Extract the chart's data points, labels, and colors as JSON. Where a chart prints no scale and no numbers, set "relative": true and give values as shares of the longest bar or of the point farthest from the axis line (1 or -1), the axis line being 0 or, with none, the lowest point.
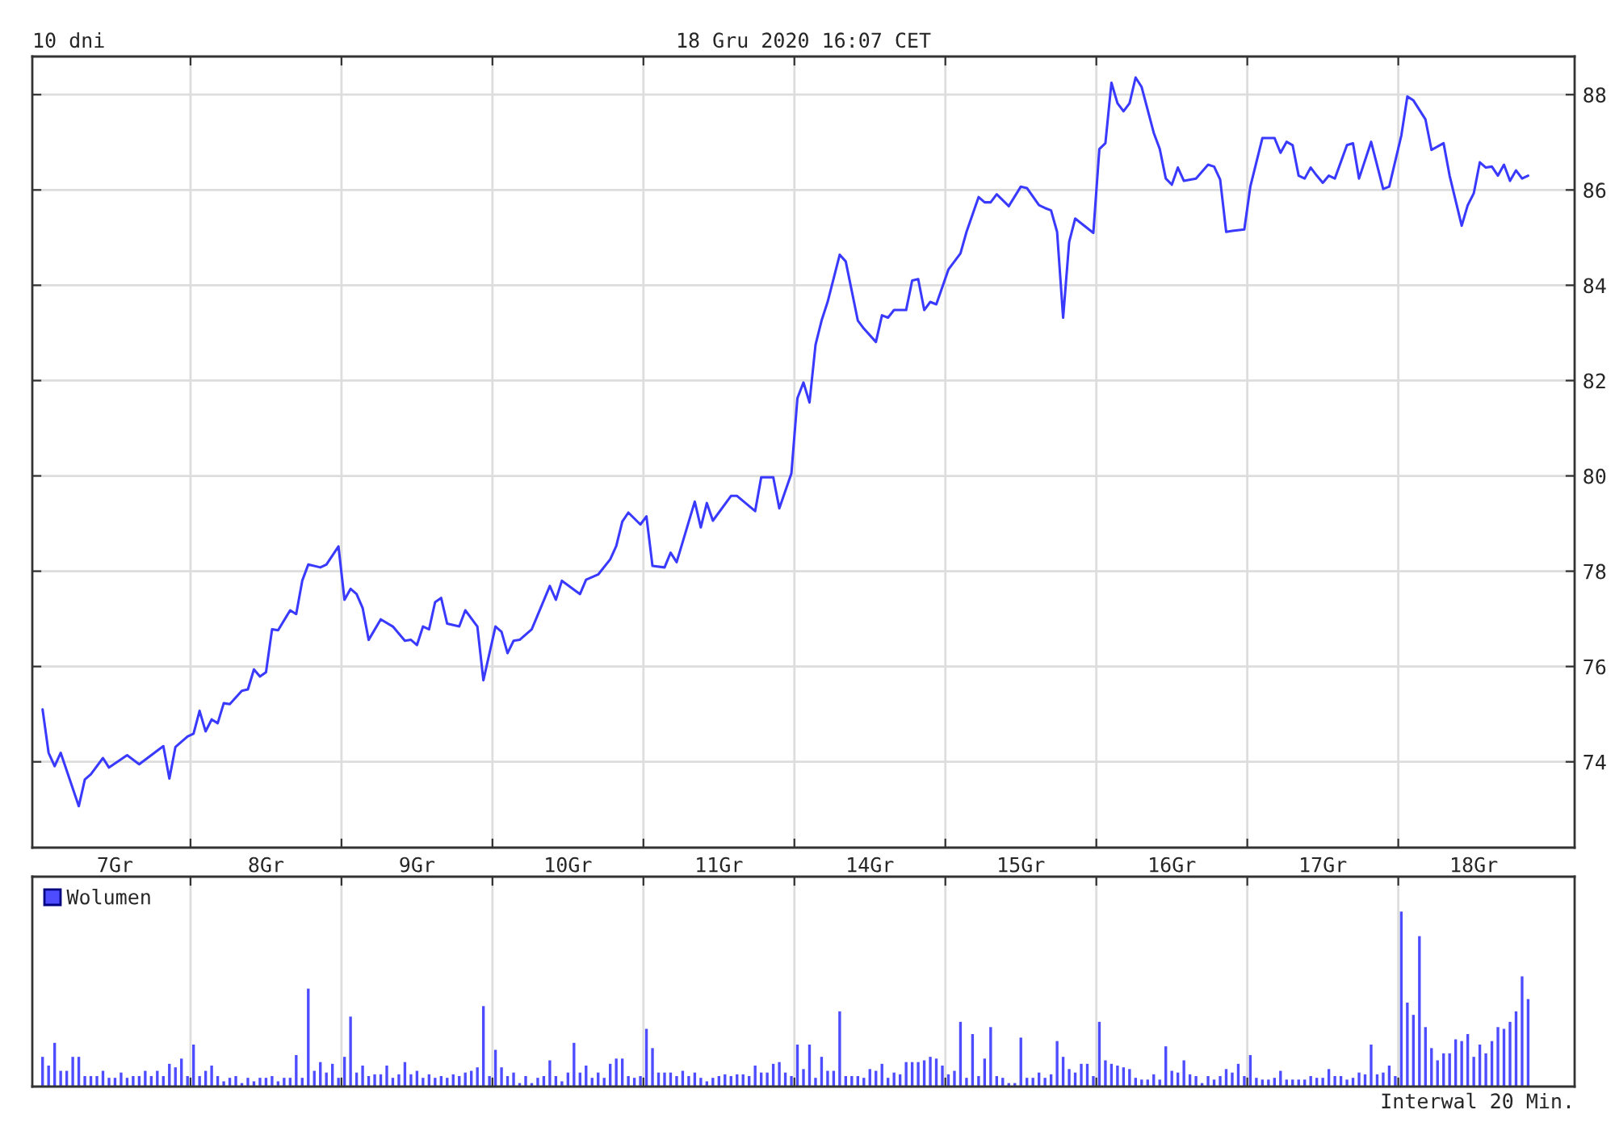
{
  "chart_data": [
    {
      "type": "line",
      "title": "10 dni",
      "subtitle": "18 Gru 2020 16:07 CET",
      "categories": [
        null,
        null,
        null,
        null,
        null,
        null,
        null,
        null,
        null,
        null,
        null,
        null,
        "7Gr",
        null,
        null,
        null,
        null,
        null,
        null,
        null,
        null,
        null,
        null,
        null,
        null,
        null,
        null,
        null,
        null,
        null,
        null,
        null,
        null,
        null,
        null,
        null,
        null,
        "8Gr",
        null,
        null,
        null,
        null,
        null,
        null,
        null,
        null,
        null,
        null,
        null,
        null,
        null,
        null,
        null,
        null,
        null,
        null,
        null,
        null,
        null,
        null,
        null,
        null,
        "9Gr",
        null,
        null,
        null,
        null,
        null,
        null,
        null,
        null,
        null,
        null,
        null,
        null,
        null,
        null,
        null,
        null,
        null,
        null,
        null,
        null,
        null,
        null,
        null,
        null,
        "10Gr",
        null,
        null,
        null,
        null,
        null,
        null,
        null,
        null,
        null,
        null,
        null,
        null,
        null,
        null,
        null,
        null,
        null,
        null,
        null,
        null,
        null,
        null,
        null,
        null,
        "11Gr",
        null,
        null,
        null,
        null,
        null,
        null,
        null,
        null,
        null,
        null,
        null,
        null,
        null,
        null,
        null,
        null,
        null,
        null,
        null,
        null,
        null,
        null,
        null,
        null,
        "14Gr",
        null,
        null,
        null,
        null,
        null,
        null,
        null,
        null,
        null,
        null,
        null,
        null,
        null,
        null,
        null,
        null,
        null,
        null,
        null,
        null,
        null,
        null,
        null,
        null,
        "15Gr",
        null,
        null,
        null,
        null,
        null,
        null,
        null,
        null,
        null,
        null,
        null,
        null,
        null,
        null,
        null,
        null,
        null,
        null,
        null,
        null,
        null,
        null,
        null,
        null,
        "16Gr",
        null,
        null,
        null,
        null,
        null,
        null,
        null,
        null,
        null,
        null,
        null,
        null,
        null,
        null,
        null,
        null,
        null,
        null,
        null,
        null,
        null,
        null,
        null,
        null,
        "17Gr",
        null,
        null,
        null,
        null,
        null,
        null,
        null,
        null,
        null,
        null,
        null,
        null,
        null,
        null,
        null,
        null,
        null,
        null,
        null,
        null,
        null,
        null,
        null,
        null,
        "18Gr",
        null,
        null,
        null,
        null,
        null,
        null,
        null,
        null,
        null
      ],
      "ylim": [
        72.2,
        88.8
      ],
      "yticks": [
        74,
        76,
        78,
        80,
        82,
        84,
        86,
        88
      ],
      "grid": true,
      "series": [
        {
          "color": "#3a3aff",
          "type": "line",
          "values": [
            75.1,
            74.19,
            73.91,
            74.19,
            null,
            null,
            73.07,
            73.63,
            73.74,
            null,
            74.08,
            73.88,
            null,
            null,
            74.14,
            null,
            73.95,
            null,
            null,
            null,
            74.33,
            73.65,
            74.31,
            null,
            74.53,
            74.59,
            75.07,
            74.64,
            74.89,
            74.81,
            75.23,
            75.21,
            null,
            75.49,
            75.52,
            75.94,
            75.79,
            75.88,
            76.78,
            76.76,
            null,
            77.18,
            77.1,
            77.8,
            78.14,
            null,
            78.08,
            78.14,
            null,
            78.52,
            77.4,
            77.63,
            77.52,
            77.23,
            76.56,
            null,
            76.99,
            null,
            76.84,
            null,
            76.54,
            76.56,
            76.45,
            76.84,
            76.78,
            77.35,
            77.44,
            76.9,
            null,
            76.84,
            77.18,
            null,
            76.84,
            75.71,
            null,
            76.84,
            76.73,
            76.28,
            76.54,
            76.56,
            null,
            76.78,
            null,
            null,
            77.69,
            77.4,
            77.8,
            null,
            null,
            77.52,
            77.82,
            null,
            77.93,
            null,
            78.25,
            78.53,
            79.04,
            79.23,
            null,
            78.98,
            79.15,
            78.11,
            null,
            78.08,
            78.39,
            78.19,
            null,
            null,
            79.46,
            78.92,
            79.43,
            79.06,
            null,
            null,
            79.58,
            79.58,
            null,
            null,
            79.26,
            79.97,
            null,
            79.97,
            79.32,
            null,
            80.05,
            81.63,
            81.96,
            81.54,
            82.75,
            83.26,
            83.65,
            null,
            84.64,
            84.5,
            null,
            83.26,
            83.09,
            null,
            82.81,
            83.37,
            83.32,
            83.48,
            null,
            83.48,
            84.1,
            84.13,
            83.48,
            83.65,
            83.6,
            null,
            84.33,
            null,
            84.67,
            85.12,
            null,
            85.85,
            85.74,
            85.74,
            85.91,
            null,
            85.66,
            null,
            86.07,
            86.04,
            null,
            85.68,
            85.62,
            85.57,
            85.12,
            83.32,
            84.91,
            85.4,
            null,
            null,
            85.1,
            86.86,
            86.98,
            88.25,
            87.82,
            87.65,
            87.82,
            88.36,
            88.16,
            null,
            87.2,
            86.86,
            86.24,
            86.11,
            86.47,
            86.19,
            null,
            86.24,
            null,
            86.53,
            86.49,
            86.22,
            85.12,
            85.14,
            null,
            85.17,
            86.07,
            null,
            87.09,
            null,
            87.09,
            86.78,
            87.01,
            86.94,
            86.3,
            86.24,
            86.47,
            86.3,
            86.15,
            86.3,
            86.24,
            null,
            86.94,
            86.98,
            86.24,
            null,
            87.01,
            null,
            86.02,
            86.07,
            null,
            87.14,
            87.96,
            87.88,
            null,
            87.48,
            86.84,
            null,
            86.98,
            86.3,
            null,
            85.25,
            85.68,
            85.93,
            86.58,
            86.47,
            86.49,
            86.3,
            86.53,
            86.19,
            86.41,
            86.24,
            86.3
          ]
        }
      ]
    },
    {
      "type": "bar",
      "relative": true,
      "grid": "x",
      "legend": "top left",
      "annotations": [
        "Interwal 20 Min."
      ],
      "categories": [
        null,
        null,
        null,
        null,
        null,
        null,
        null,
        null,
        null,
        null,
        null,
        null,
        null,
        null,
        null,
        null,
        null,
        null,
        null,
        null,
        null,
        null,
        null,
        null,
        null,
        null,
        null,
        null,
        null,
        null,
        null,
        null,
        null,
        null,
        null,
        null,
        null,
        null,
        null,
        null,
        null,
        null,
        null,
        null,
        null,
        null,
        null,
        null,
        null,
        null,
        null,
        null,
        null,
        null,
        null,
        null,
        null,
        null,
        null,
        null,
        null,
        null,
        null,
        null,
        null,
        null,
        null,
        null,
        null,
        null,
        null,
        null,
        null,
        null,
        null,
        null,
        null,
        null,
        null,
        null,
        null,
        null,
        null,
        null,
        null,
        null,
        null,
        null,
        null,
        null,
        null,
        null,
        null,
        null,
        null,
        null,
        null,
        null,
        null,
        null,
        null,
        null,
        null,
        null,
        null,
        null,
        null,
        null,
        null,
        null,
        null,
        null,
        null,
        null,
        null,
        null,
        null,
        null,
        null,
        null,
        null,
        null,
        null,
        null,
        null,
        null,
        null,
        null,
        null,
        null,
        null,
        null,
        null,
        null,
        null,
        null,
        null,
        null,
        null,
        null,
        null,
        null,
        null,
        null,
        null,
        null,
        null,
        null,
        null,
        null,
        null,
        null,
        null,
        null,
        null,
        null,
        null,
        null,
        null,
        null,
        null,
        null,
        null,
        null,
        null,
        null,
        null,
        null,
        null,
        null,
        null,
        null,
        null,
        null,
        null,
        null,
        null,
        null,
        null,
        null,
        null,
        null,
        null,
        null,
        null,
        null,
        null,
        null,
        null,
        null,
        null,
        null,
        null,
        null,
        null,
        null,
        null,
        null,
        null,
        null,
        null,
        null,
        null,
        null,
        null,
        null,
        null,
        null,
        null,
        null,
        null,
        null,
        null,
        null,
        null,
        null,
        null,
        null,
        null,
        null,
        null,
        null,
        null,
        null,
        null,
        null,
        null,
        null,
        null,
        null,
        null,
        null,
        null,
        null,
        null,
        null,
        null,
        null,
        null,
        null,
        null,
        null,
        null,
        null,
        null,
        null,
        null
      ],
      "series": [
        {
          "name": "Wolumen",
          "color": "#4d4dff",
          "values": [
            0.17,
            0.12,
            0.25,
            0.09,
            0.09,
            0.17,
            0.17,
            0.06,
            0.06,
            0.06,
            0.09,
            0.05,
            0.05,
            0.08,
            0.05,
            0.06,
            0.06,
            0.09,
            0.06,
            0.09,
            0.06,
            0.13,
            0.11,
            0.16,
            0.06,
            0.24,
            0.06,
            0.09,
            0.12,
            0.06,
            0.03,
            0.05,
            0.06,
            0.02,
            0.05,
            0.03,
            0.05,
            0.05,
            0.06,
            0.03,
            0.05,
            0.05,
            0.18,
            0.05,
            0.56,
            0.09,
            0.14,
            0.08,
            0.13,
            0.05,
            0.17,
            0.4,
            0.08,
            0.12,
            0.06,
            0.07,
            0.07,
            0.12,
            0.05,
            0.07,
            0.14,
            0.07,
            0.09,
            0.05,
            0.07,
            0.05,
            0.06,
            0.05,
            0.07,
            0.06,
            0.08,
            0.09,
            0.11,
            0.46,
            0.06,
            0.21,
            0.11,
            0.06,
            0.08,
            0.02,
            0.06,
            0.02,
            0.05,
            0.06,
            0.15,
            0.06,
            0.03,
            0.08,
            0.25,
            0.08,
            0.12,
            0.05,
            0.08,
            0.05,
            0.13,
            0.16,
            0.16,
            0.06,
            0.05,
            0.06,
            0.33,
            0.22,
            0.08,
            0.08,
            0.08,
            0.06,
            0.09,
            0.06,
            0.08,
            0.05,
            0.03,
            0.05,
            0.06,
            0.07,
            0.06,
            0.07,
            0.07,
            0.06,
            0.12,
            0.08,
            0.08,
            0.13,
            0.14,
            0.08,
            0.06,
            0.24,
            0.1,
            0.24,
            0.05,
            0.17,
            0.09,
            0.09,
            0.43,
            0.06,
            0.06,
            0.06,
            0.05,
            0.1,
            0.09,
            0.13,
            0.05,
            0.08,
            0.07,
            0.14,
            0.14,
            0.14,
            0.15,
            0.17,
            0.16,
            0.12,
            0.07,
            0.09,
            0.37,
            0.05,
            0.3,
            0.06,
            0.16,
            0.34,
            0.06,
            0.05,
            0.02,
            0.02,
            0.28,
            0.05,
            0.05,
            0.08,
            0.05,
            0.07,
            0.26,
            0.17,
            0.1,
            0.08,
            0.13,
            0.13,
            0.06,
            0.37,
            0.15,
            0.13,
            0.12,
            0.11,
            0.1,
            0.05,
            0.04,
            0.04,
            0.07,
            0.04,
            0.23,
            0.09,
            0.08,
            0.15,
            0.07,
            0.06,
            0.02,
            0.06,
            0.04,
            0.06,
            0.1,
            0.08,
            0.13,
            0.06,
            0.18,
            0.05,
            0.04,
            0.04,
            0.05,
            0.09,
            0.04,
            0.04,
            0.04,
            0.04,
            0.06,
            0.05,
            0.05,
            0.1,
            0.06,
            0.06,
            0.04,
            0.05,
            0.08,
            0.07,
            0.24,
            0.07,
            0.08,
            0.12,
            0.06,
            1,
            0.48,
            0.41,
            0.86,
            0.34,
            0.22,
            0.15,
            0.19,
            0.19,
            0.27,
            0.26,
            0.3,
            0.17,
            0.24,
            0.19,
            0.26,
            0.34,
            0.33,
            0.37,
            0.43,
            0.63,
            0.5
          ]
        }
      ]
    }
  ]
}
